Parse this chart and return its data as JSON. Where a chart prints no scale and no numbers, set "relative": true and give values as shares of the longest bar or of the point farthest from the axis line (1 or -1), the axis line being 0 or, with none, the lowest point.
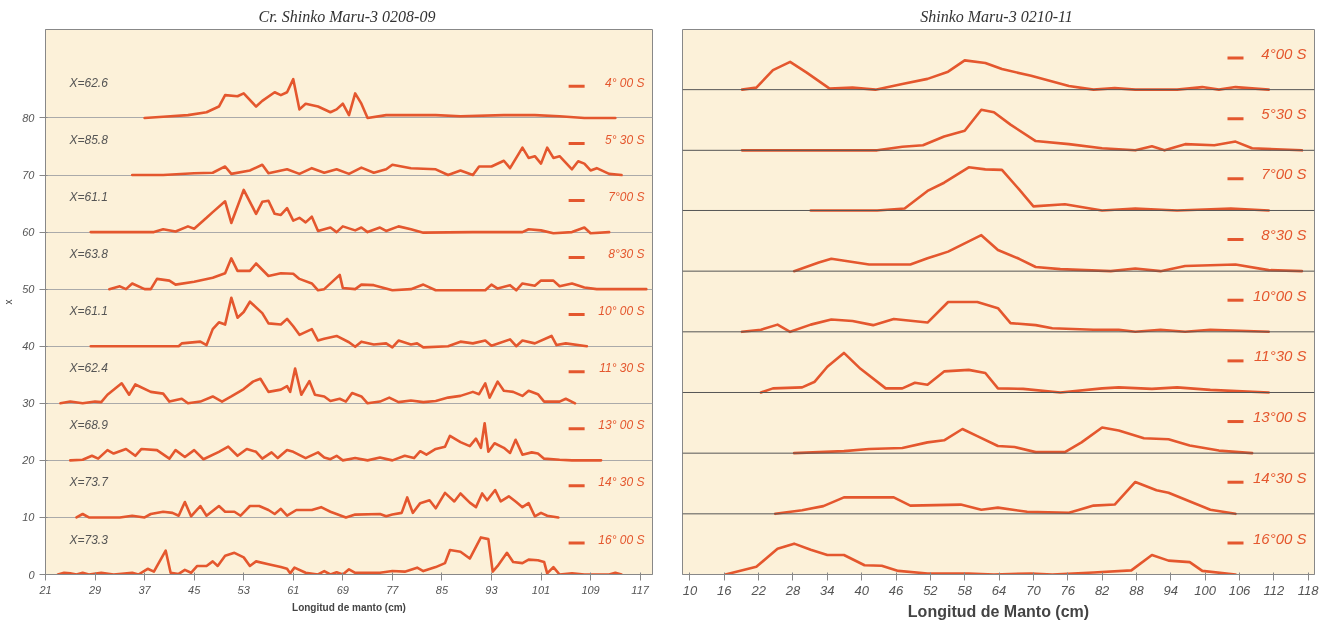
{
  "chart_data": [
    {
      "type": "line",
      "title": "Cr. Shinko Maru-3  0208-09",
      "xlabel": "Longitud de manto (cm)",
      "ylabel": "x",
      "xlim": [
        21,
        119
      ],
      "xticks": [
        21,
        29,
        37,
        45,
        53,
        61,
        69,
        77,
        85,
        93,
        101,
        109,
        117
      ],
      "ylim": [
        0,
        95.5
      ],
      "yticks": [
        0,
        10,
        20,
        30,
        40,
        50,
        60,
        70,
        80
      ],
      "grid": "y",
      "legend": "right",
      "annotations": [
        "X=62.6",
        "X=85.8",
        "X=61.1",
        "X=63.8",
        "X=61.1",
        "X=62.4",
        "X=68.9",
        "X=73.7",
        "X=73.3"
      ],
      "series": [
        {
          "name": "4° 00 S",
          "color": "#e4572e",
          "x": [
            37,
            40,
            44,
            47,
            49,
            50,
            52,
            53,
            55,
            56,
            58,
            59,
            60,
            61,
            62,
            63,
            65,
            67,
            68,
            69,
            70,
            71,
            72,
            73,
            76,
            80,
            84,
            88,
            95,
            100,
            104,
            108,
            113
          ],
          "values": [
            80,
            80.2,
            80.5,
            81,
            82,
            84,
            83.8,
            84.3,
            82,
            83,
            84.5,
            84,
            84.5,
            86.8,
            81.5,
            82.5,
            82,
            81,
            81.5,
            82.5,
            80.5,
            84.3,
            82.5,
            80,
            80.5,
            80.5,
            80.5,
            80.3,
            80.5,
            80.5,
            80.3,
            80,
            80
          ]
        },
        {
          "name": "5° 30 S",
          "color": "#e4572e",
          "x": [
            35,
            40,
            45,
            48,
            50,
            51,
            54,
            56,
            57,
            60,
            62,
            64,
            66,
            68,
            70,
            72,
            74,
            76,
            77,
            80,
            84,
            86,
            88,
            90,
            91,
            93,
            95,
            96,
            98,
            99,
            100,
            101,
            102,
            103,
            104,
            106,
            107,
            108,
            109,
            110,
            112,
            114
          ],
          "values": [
            70,
            70,
            70.3,
            70.4,
            71.5,
            70.2,
            70.8,
            71.8,
            70.3,
            71,
            70.2,
            71.2,
            70.4,
            71,
            70.2,
            71.3,
            70.4,
            71,
            71.8,
            71.2,
            71,
            70,
            70.8,
            70,
            71.5,
            71.5,
            72.5,
            71.2,
            74.8,
            73,
            73.3,
            72,
            74.8,
            73,
            73.3,
            71,
            72.4,
            72,
            70.8,
            71.2,
            70.2,
            70
          ]
        },
        {
          "name": "7°00 S",
          "color": "#e4572e",
          "x": [
            28.3,
            38.5,
            40,
            42,
            44,
            45,
            47,
            48,
            50,
            51,
            53,
            55,
            56,
            57,
            58,
            59,
            60,
            61,
            62,
            63,
            64,
            65,
            67,
            68,
            69,
            71,
            72,
            73,
            75,
            76,
            78,
            80,
            82,
            90,
            98,
            99,
            101,
            103,
            106,
            108,
            109,
            112
          ],
          "values": [
            60,
            60,
            60.5,
            60.1,
            61,
            60.6,
            62.5,
            63.5,
            65.4,
            61.6,
            67.4,
            63.2,
            65.3,
            65.5,
            63.2,
            63,
            64.2,
            62,
            62.5,
            61.7,
            62.7,
            60.2,
            60.8,
            60,
            61,
            60.3,
            60.8,
            60,
            60.8,
            60.2,
            61,
            60.5,
            59.9,
            60,
            60,
            60.5,
            60.3,
            59.8,
            60,
            60.8,
            59.8,
            60
          ]
        },
        {
          "name": "8°30 S",
          "color": "#e4572e",
          "x": [
            31.3,
            33,
            34,
            35,
            37,
            38,
            39,
            41,
            42,
            45,
            48,
            50,
            51,
            52,
            54,
            55,
            57,
            59,
            61,
            62,
            64,
            65,
            66,
            68.5,
            69,
            71,
            72,
            74,
            77,
            80,
            82,
            84,
            92,
            93,
            94,
            96,
            97,
            98,
            100,
            101,
            103,
            104,
            106,
            108,
            110,
            118
          ],
          "values": [
            50,
            50.5,
            50,
            51,
            50,
            50,
            51.8,
            51.5,
            50.8,
            51.3,
            52,
            52.8,
            55.4,
            53.2,
            53.2,
            54.5,
            52.3,
            52.8,
            52.7,
            51.8,
            51,
            49.8,
            50,
            52.5,
            50.2,
            50,
            50.8,
            50.7,
            49.8,
            50,
            50.8,
            49.8,
            49.8,
            50.8,
            50.1,
            50.7,
            49.8,
            51,
            50.6,
            51.5,
            51.5,
            50.5,
            51,
            50.3,
            50,
            50
          ]
        },
        {
          "name": "10° 00 S",
          "color": "#e4572e",
          "x": [
            28.3,
            42.5,
            43,
            46,
            47,
            48,
            49,
            50,
            51,
            52,
            53,
            54,
            56,
            57,
            59,
            60,
            61,
            62,
            64,
            65,
            66,
            68,
            70,
            71,
            72,
            74,
            76,
            77,
            78,
            80,
            81,
            82,
            86,
            88,
            90,
            92,
            93,
            96,
            97,
            98,
            100,
            102.7,
            103.5,
            105,
            108.4
          ],
          "values": [
            40,
            40,
            40.5,
            40.8,
            40.2,
            43,
            44.2,
            43.8,
            48.5,
            45,
            46,
            47.8,
            45.8,
            44,
            43.8,
            44.8,
            43.5,
            42,
            43,
            41,
            41.3,
            41.8,
            40.7,
            39.9,
            40.8,
            40.3,
            40.5,
            39.8,
            41,
            40.3,
            40.5,
            39.8,
            40,
            40.8,
            40.5,
            41,
            40.1,
            41.2,
            40,
            41,
            40.5,
            41.8,
            40.2,
            40.5,
            40
          ]
        },
        {
          "name": "11° 30 S",
          "color": "#e4572e",
          "x": [
            23.4,
            25,
            27,
            29,
            30,
            31,
            33.3,
            34.5,
            35.5,
            38,
            40,
            41,
            43,
            44,
            46,
            48,
            49.5,
            51,
            53,
            54.5,
            55.7,
            57,
            59,
            60,
            60.5,
            61.3,
            62.3,
            63.6,
            64.5,
            66,
            67,
            68.5,
            69.5,
            70.5,
            72,
            73,
            75,
            76.5,
            78,
            80,
            82,
            84,
            86,
            88,
            90,
            91,
            92,
            92.7,
            94,
            95,
            96.5,
            98,
            99,
            100.5,
            101.5,
            104,
            105,
            106.5
          ],
          "values": [
            30,
            30.3,
            30,
            30.3,
            30.2,
            31.5,
            33.5,
            31.5,
            33.3,
            32,
            31.7,
            30.3,
            30.8,
            30,
            30.3,
            31.2,
            30.3,
            31.2,
            32.5,
            33.8,
            34.3,
            32,
            32.4,
            33,
            32,
            36.1,
            31.5,
            33.9,
            31.5,
            31.2,
            30.4,
            30.8,
            30.3,
            31.8,
            31.2,
            30,
            30.3,
            31,
            30.2,
            30.5,
            30.2,
            30.4,
            31,
            31.3,
            32,
            31.6,
            33.5,
            31,
            33.8,
            32.2,
            32,
            31.3,
            32.2,
            31.6,
            30.3,
            30.3,
            30.8,
            30
          ]
        },
        {
          "name": "13° 00 S",
          "color": "#e4572e",
          "x": [
            25,
            27,
            28.5,
            29.5,
            31,
            32,
            34,
            35.5,
            36.5,
            39,
            41,
            42,
            43.5,
            45,
            46.5,
            49,
            50.5,
            52,
            53.5,
            55,
            56,
            57.5,
            58.5,
            60,
            61,
            63,
            65,
            66,
            67,
            68,
            69,
            71,
            73,
            75,
            77,
            79,
            80.5,
            81.5,
            82.5,
            84,
            85.5,
            86.3,
            88,
            89.5,
            90.5,
            91.3,
            91.9,
            92.5,
            93.5,
            95,
            96,
            96.9,
            98,
            99.5,
            100.5,
            101.5,
            104,
            106,
            109,
            110.7
          ],
          "values": [
            20,
            20.1,
            20.8,
            20.3,
            21.8,
            21.2,
            22,
            20.8,
            22,
            21.8,
            20.3,
            21.8,
            20.6,
            21.8,
            20.2,
            21.5,
            22.4,
            20.8,
            22,
            21.5,
            20.3,
            21.4,
            20.4,
            21.8,
            21.5,
            20.4,
            21.4,
            20.5,
            20.2,
            20.8,
            20,
            20.4,
            20,
            20.5,
            20,
            20.8,
            20.4,
            21.6,
            21,
            22,
            22.4,
            24.3,
            23.2,
            22.5,
            23.8,
            22.2,
            26.5,
            21.5,
            23,
            22.2,
            21.3,
            23.6,
            21,
            21.4,
            21.2,
            20.3,
            20.1,
            20,
            20,
            20
          ]
        },
        {
          "name": "14° 30 S",
          "color": "#e4572e",
          "x": [
            26,
            27,
            28,
            33,
            35,
            37,
            38,
            40,
            41.5,
            42.5,
            43.5,
            44.5,
            46,
            47,
            49,
            50,
            51.5,
            52.5,
            54,
            55.5,
            57,
            58,
            59,
            60,
            61.5,
            64,
            65.5,
            67,
            69.5,
            71,
            75,
            76,
            77,
            78.5,
            79.4,
            80.3,
            81.5,
            83,
            84,
            85.5,
            87,
            88,
            89.5,
            90.5,
            91.5,
            92.3,
            93.6,
            94.5,
            95.8,
            97,
            98,
            99,
            100,
            101,
            102,
            103.8
          ],
          "values": [
            10,
            10.6,
            10,
            10,
            10.3,
            10,
            10.6,
            11,
            10.8,
            10.3,
            12.7,
            10.2,
            12,
            10.3,
            12,
            11,
            11,
            10.3,
            12,
            12,
            11.3,
            10.6,
            11.5,
            10.3,
            11.3,
            11.3,
            11.8,
            11,
            10,
            10.5,
            10.6,
            10.2,
            10.5,
            10.8,
            13.5,
            10.8,
            12.5,
            13,
            11.6,
            14.3,
            12.8,
            14.2,
            12.6,
            11.8,
            14.2,
            13,
            14.8,
            12.8,
            13.7,
            12.7,
            11.8,
            12.5,
            10.2,
            10.8,
            10.3,
            10
          ]
        },
        {
          "name": "16° 00 S",
          "color": "#e4572e",
          "x": [
            23,
            24,
            25,
            26,
            27,
            28,
            30,
            32,
            35,
            36,
            37.5,
            38.5,
            40.4,
            41.2,
            42.5,
            43.5,
            44.5,
            45.5,
            47,
            48,
            48.8,
            50,
            51.5,
            53,
            54,
            55,
            57,
            59,
            60,
            60.5,
            61.2,
            63,
            65,
            66,
            67,
            68,
            69,
            70,
            71,
            75,
            77,
            79,
            81,
            82,
            84,
            85.5,
            86.3,
            88,
            89.5,
            91.3,
            92.5,
            93.2,
            94,
            95.5,
            96.5,
            98,
            99,
            100.5,
            101.5,
            102,
            103,
            104,
            106,
            108,
            112,
            113,
            114
          ],
          "values": [
            0,
            0.3,
            0.2,
            0,
            0.3,
            0,
            0.3,
            0,
            0.3,
            0,
            1,
            0.5,
            4.2,
            0.3,
            0.1,
            0.8,
            0.3,
            1.5,
            1.5,
            2.3,
            1.5,
            3.3,
            3.8,
            3,
            1.5,
            2.3,
            1.8,
            1.3,
            1,
            0.2,
            1.2,
            0.3,
            0,
            0.6,
            0,
            0.4,
            0,
            0.9,
            0.3,
            0.3,
            0.6,
            0.5,
            1.2,
            0.6,
            1.3,
            2,
            4.3,
            4,
            2.8,
            6.5,
            6.2,
            0.5,
            1.5,
            3.8,
            2.2,
            2,
            2.6,
            2.5,
            2.2,
            0.2,
            1.3,
            0,
            0.2,
            0,
            0,
            0.3,
            0
          ]
        }
      ]
    },
    {
      "type": "line",
      "title": "Shinko Maru-3  0210-11",
      "xlabel": "Longitud de Manto (cm)",
      "relative": true,
      "tick_labels": "x",
      "legend": "right",
      "xlim": [
        8.7,
        119.1
      ],
      "xticks": [
        10,
        16,
        22,
        28,
        34,
        40,
        46,
        52,
        58,
        64,
        70,
        76,
        82,
        88,
        94,
        100,
        106,
        112,
        118
      ],
      "ref_lines": [
        {
          "axis": "y",
          "value": 0.118
        },
        {
          "axis": "y",
          "value": 0.236
        },
        {
          "axis": "y",
          "value": 0.354
        },
        {
          "axis": "y",
          "value": 0.472
        },
        {
          "axis": "y",
          "value": 0.59
        },
        {
          "axis": "y",
          "value": 0.708
        },
        {
          "axis": "y",
          "value": 0.825
        },
        {
          "axis": "y",
          "value": 0.943
        }
      ],
      "series": [
        {
          "name": "4°00 S",
          "color": "#e4572e",
          "x": [
            19.1,
            21.6,
            24.5,
            27.5,
            30.4,
            34.4,
            38.4,
            42.4,
            47.1,
            51.5,
            55.1,
            58,
            61.6,
            64.5,
            69.6,
            76.2,
            80.5,
            84.2,
            87.8,
            95.1,
            99.5,
            102.4,
            105.3,
            111.1
          ],
          "values": [
            0.943,
            0.947,
            0.981,
            0.997,
            0.976,
            0.945,
            0.947,
            0.943,
            0.954,
            0.964,
            0.978,
            1,
            0.995,
            0.983,
            0.97,
            0.95,
            0.943,
            0.946,
            0.943,
            0.943,
            0.948,
            0.943,
            0.948,
            0.943
          ]
        },
        {
          "name": "5°30 S",
          "color": "#e4572e",
          "x": [
            19.1,
            40.5,
            42.7,
            47.1,
            50.7,
            54.4,
            58,
            60.9,
            63.1,
            66,
            70.4,
            76.2,
            82,
            87.8,
            90.7,
            92.9,
            96.5,
            101.6,
            105.3,
            108.2,
            116.9
          ],
          "values": [
            0.825,
            0.825,
            0.825,
            0.832,
            0.835,
            0.852,
            0.863,
            0.904,
            0.899,
            0.875,
            0.843,
            0.837,
            0.829,
            0.825,
            0.833,
            0.825,
            0.837,
            0.835,
            0.842,
            0.829,
            0.825
          ]
        },
        {
          "name": "7°00 S",
          "color": "#e4572e",
          "x": [
            31.1,
            42.7,
            47.5,
            51.5,
            54.4,
            58.7,
            61.6,
            64.5,
            67.5,
            70,
            75.5,
            82,
            87.8,
            95.1,
            104.5,
            111.1
          ],
          "values": [
            0.708,
            0.708,
            0.712,
            0.746,
            0.762,
            0.792,
            0.788,
            0.787,
            0.749,
            0.716,
            0.72,
            0.708,
            0.712,
            0.708,
            0.712,
            0.708
          ]
        },
        {
          "name": "8°30 S",
          "color": "#e4572e",
          "x": [
            28.2,
            32.5,
            34.7,
            41.3,
            48.5,
            51.5,
            55.1,
            58.7,
            60.9,
            63.8,
            67.5,
            70.4,
            74.7,
            83.5,
            87.8,
            92.2,
            96.5,
            105.3,
            111.1,
            116.9
          ],
          "values": [
            0.59,
            0.607,
            0.614,
            0.603,
            0.603,
            0.615,
            0.628,
            0.648,
            0.66,
            0.631,
            0.614,
            0.598,
            0.594,
            0.59,
            0.595,
            0.59,
            0.6,
            0.603,
            0.592,
            0.59
          ]
        },
        {
          "name": "10°00 S",
          "color": "#e4572e",
          "x": [
            19.1,
            22.4,
            25.3,
            27.5,
            31.1,
            34.7,
            38.4,
            42,
            45.6,
            51.5,
            55.1,
            60.2,
            63.8,
            66,
            70.4,
            73.3,
            80.5,
            84.9,
            87.8,
            92.2,
            96.5,
            100.9,
            111.1
          ],
          "values": [
            0.472,
            0.476,
            0.486,
            0.472,
            0.486,
            0.496,
            0.493,
            0.485,
            0.497,
            0.49,
            0.53,
            0.53,
            0.518,
            0.489,
            0.485,
            0.479,
            0.476,
            0.476,
            0.472,
            0.476,
            0.472,
            0.476,
            0.472
          ]
        },
        {
          "name": "11°30 S",
          "color": "#e4572e",
          "x": [
            22.4,
            24.5,
            29.6,
            31.8,
            34,
            36.9,
            39.8,
            44.2,
            47.1,
            49.3,
            51.5,
            54.4,
            58.7,
            61.6,
            63.8,
            68.2,
            74.7,
            82,
            84.9,
            90.7,
            95.1,
            100.9,
            111.1
          ],
          "values": [
            0.354,
            0.362,
            0.364,
            0.375,
            0.404,
            0.431,
            0.4,
            0.362,
            0.362,
            0.373,
            0.369,
            0.395,
            0.398,
            0.392,
            0.362,
            0.361,
            0.354,
            0.362,
            0.364,
            0.361,
            0.364,
            0.359,
            0.354
          ]
        },
        {
          "name": "13°00 S",
          "color": "#e4572e",
          "x": [
            28.2,
            36.9,
            41.3,
            47.1,
            51.5,
            54.4,
            57.6,
            60.2,
            63.8,
            66.7,
            70.4,
            75.5,
            78.4,
            82,
            84.9,
            89.3,
            93.6,
            97.3,
            102.4,
            108.2
          ],
          "values": [
            0.236,
            0.24,
            0.244,
            0.246,
            0.257,
            0.261,
            0.283,
            0.269,
            0.25,
            0.248,
            0.238,
            0.238,
            0.257,
            0.286,
            0.28,
            0.265,
            0.263,
            0.251,
            0.241,
            0.236
          ]
        },
        {
          "name": "14°30 S",
          "color": "#e4572e",
          "x": [
            24.9,
            29.6,
            33.3,
            36.9,
            45.6,
            48.5,
            57.3,
            60.9,
            63.8,
            68.9,
            76.2,
            80.5,
            84.2,
            87.8,
            91.5,
            93.6,
            98,
            100.9,
            105.3
          ],
          "values": [
            0.118,
            0.125,
            0.133,
            0.15,
            0.15,
            0.134,
            0.136,
            0.126,
            0.13,
            0.122,
            0.12,
            0.134,
            0.136,
            0.18,
            0.164,
            0.159,
            0.139,
            0.126,
            0.118
          ]
        },
        {
          "name": "16°00 S",
          "color": "#e4572e",
          "x": [
            16.2,
            21.6,
            25.3,
            28.2,
            31.1,
            34,
            36.9,
            40.5,
            43.5,
            46.4,
            51.5,
            58.7,
            63.1,
            69.6,
            73.3,
            80.5,
            87.1,
            90.7,
            93.6,
            97.3,
            99.5,
            105.3
          ],
          "values": [
            0,
            0.015,
            0.05,
            0.06,
            0.048,
            0.038,
            0.038,
            0.018,
            0.017,
            0.007,
            0.002,
            0.002,
            0,
            0.002,
            0,
            0.004,
            0.008,
            0.038,
            0.027,
            0.024,
            0.007,
            0
          ]
        }
      ]
    }
  ]
}
